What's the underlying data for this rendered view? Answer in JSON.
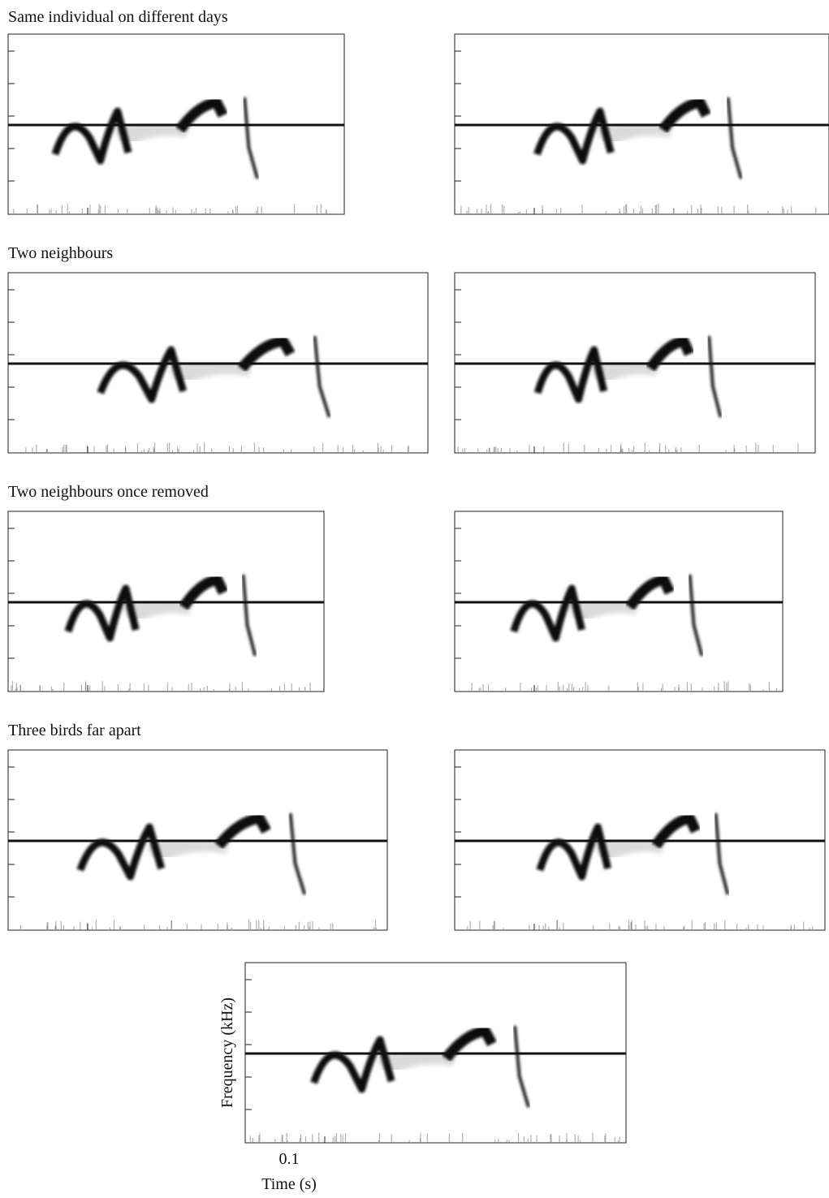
{
  "sections": [
    {
      "title": "Same individual on different days"
    },
    {
      "title": "Two neighbours"
    },
    {
      "title": "Two neighbours once removed"
    },
    {
      "title": "Three birds far apart"
    }
  ],
  "axes": {
    "y_label": "Frequency (kHz)",
    "x_tick": "0.1",
    "x_label": "Time (s)"
  }
}
